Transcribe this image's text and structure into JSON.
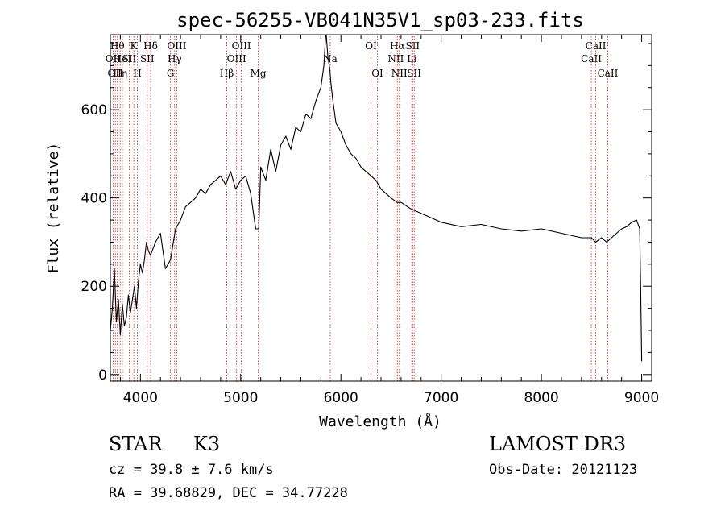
{
  "chart_data": {
    "type": "line",
    "title": "spec-56255-VB041N35V1_sp03-233.fits",
    "xlabel": "Wavelength (Å)",
    "ylabel": "Flux (relative)",
    "xlim": [
      3700,
      9100
    ],
    "ylim": [
      -15,
      770
    ],
    "x_ticks": [
      4000,
      5000,
      6000,
      7000,
      8000,
      9000
    ],
    "y_ticks": [
      0,
      200,
      400,
      600
    ],
    "x_tick_labels": [
      "4000",
      "5000",
      "6000",
      "7000",
      "8000",
      "9000"
    ],
    "y_tick_labels": [
      "0",
      "200",
      "400",
      "600"
    ],
    "series": [
      {
        "name": "flux",
        "x": [
          3700,
          3720,
          3740,
          3760,
          3780,
          3800,
          3820,
          3840,
          3860,
          3880,
          3900,
          3920,
          3940,
          3960,
          3980,
          4000,
          4020,
          4040,
          4060,
          4080,
          4100,
          4150,
          4200,
          4250,
          4300,
          4350,
          4400,
          4450,
          4500,
          4550,
          4600,
          4650,
          4700,
          4750,
          4800,
          4850,
          4900,
          4950,
          5000,
          5050,
          5100,
          5150,
          5180,
          5200,
          5250,
          5300,
          5350,
          5400,
          5450,
          5500,
          5550,
          5600,
          5650,
          5700,
          5750,
          5800,
          5830,
          5850,
          5870,
          5890,
          5900,
          5920,
          5950,
          6000,
          6050,
          6100,
          6150,
          6200,
          6250,
          6300,
          6350,
          6400,
          6450,
          6500,
          6560,
          6600,
          6700,
          6800,
          6900,
          7000,
          7200,
          7400,
          7600,
          7800,
          8000,
          8200,
          8400,
          8500,
          8540,
          8600,
          8650,
          8700,
          8750,
          8800,
          8850,
          8900,
          8950,
          8980,
          8990,
          9000
        ],
        "y": [
          100,
          150,
          240,
          120,
          170,
          90,
          160,
          110,
          130,
          180,
          140,
          170,
          200,
          150,
          210,
          250,
          230,
          260,
          300,
          280,
          270,
          300,
          320,
          240,
          260,
          330,
          350,
          380,
          390,
          400,
          420,
          410,
          430,
          440,
          450,
          430,
          460,
          420,
          440,
          450,
          410,
          330,
          330,
          470,
          440,
          510,
          460,
          520,
          540,
          510,
          560,
          550,
          590,
          580,
          620,
          650,
          700,
          780,
          720,
          690,
          660,
          620,
          570,
          550,
          520,
          500,
          490,
          470,
          460,
          450,
          440,
          420,
          410,
          400,
          390,
          390,
          375,
          365,
          355,
          345,
          335,
          340,
          330,
          325,
          330,
          320,
          310,
          310,
          300,
          310,
          300,
          310,
          320,
          330,
          335,
          345,
          350,
          330,
          200,
          30
        ]
      }
    ],
    "line_markers": [
      {
        "wave": 3727,
        "label": "OII",
        "row": 2
      },
      {
        "wave": 3750,
        "label": "OII",
        "row": 3
      },
      {
        "wave": 3770,
        "label": "Hθ",
        "row": 1
      },
      {
        "wave": 3798,
        "label": "Hη",
        "row": 3
      },
      {
        "wave": 3820,
        "label": "HeI",
        "row": 2
      },
      {
        "wave": 3889,
        "label": "SII",
        "row": 2
      },
      {
        "wave": 3934,
        "label": "K",
        "row": 1
      },
      {
        "wave": 3970,
        "label": "H",
        "row": 3
      },
      {
        "wave": 4068,
        "label": "SII",
        "row": 2
      },
      {
        "wave": 4102,
        "label": "Hδ",
        "row": 1
      },
      {
        "wave": 4300,
        "label": "G",
        "row": 3
      },
      {
        "wave": 4341,
        "label": "Hγ",
        "row": 2
      },
      {
        "wave": 4363,
        "label": "OIII",
        "row": 1
      },
      {
        "wave": 4861,
        "label": "Hβ",
        "row": 3
      },
      {
        "wave": 4959,
        "label": "OIII",
        "row": 2
      },
      {
        "wave": 5007,
        "label": "OIII",
        "row": 1
      },
      {
        "wave": 5175,
        "label": "Mg",
        "row": 3
      },
      {
        "wave": 5893,
        "label": "Na",
        "row": 2
      },
      {
        "wave": 6300,
        "label": "OI",
        "row": 1
      },
      {
        "wave": 6364,
        "label": "OI",
        "row": 3
      },
      {
        "wave": 6548,
        "label": "NII",
        "row": 2
      },
      {
        "wave": 6563,
        "label": "Hα",
        "row": 1
      },
      {
        "wave": 6583,
        "label": "NII",
        "row": 3
      },
      {
        "wave": 6707,
        "label": "Li",
        "row": 2
      },
      {
        "wave": 6716,
        "label": "SII",
        "row": 1
      },
      {
        "wave": 6731,
        "label": "SII",
        "row": 3
      },
      {
        "wave": 8498,
        "label": "CaII",
        "row": 2
      },
      {
        "wave": 8542,
        "label": "CaII",
        "row": 1
      },
      {
        "wave": 8662,
        "label": "CaII",
        "row": 3
      }
    ],
    "colors": {
      "line": "#000000",
      "marker": "#d02020",
      "axes": "#000000"
    }
  },
  "info": {
    "class_label": "STAR",
    "subclass": "K3",
    "survey": "LAMOST DR3",
    "redshift": "cz = 39.8 ± 7.6 km/s",
    "obs_date": "Obs-Date: 20121123",
    "coords": "RA =  39.68829, DEC =  34.77228"
  }
}
